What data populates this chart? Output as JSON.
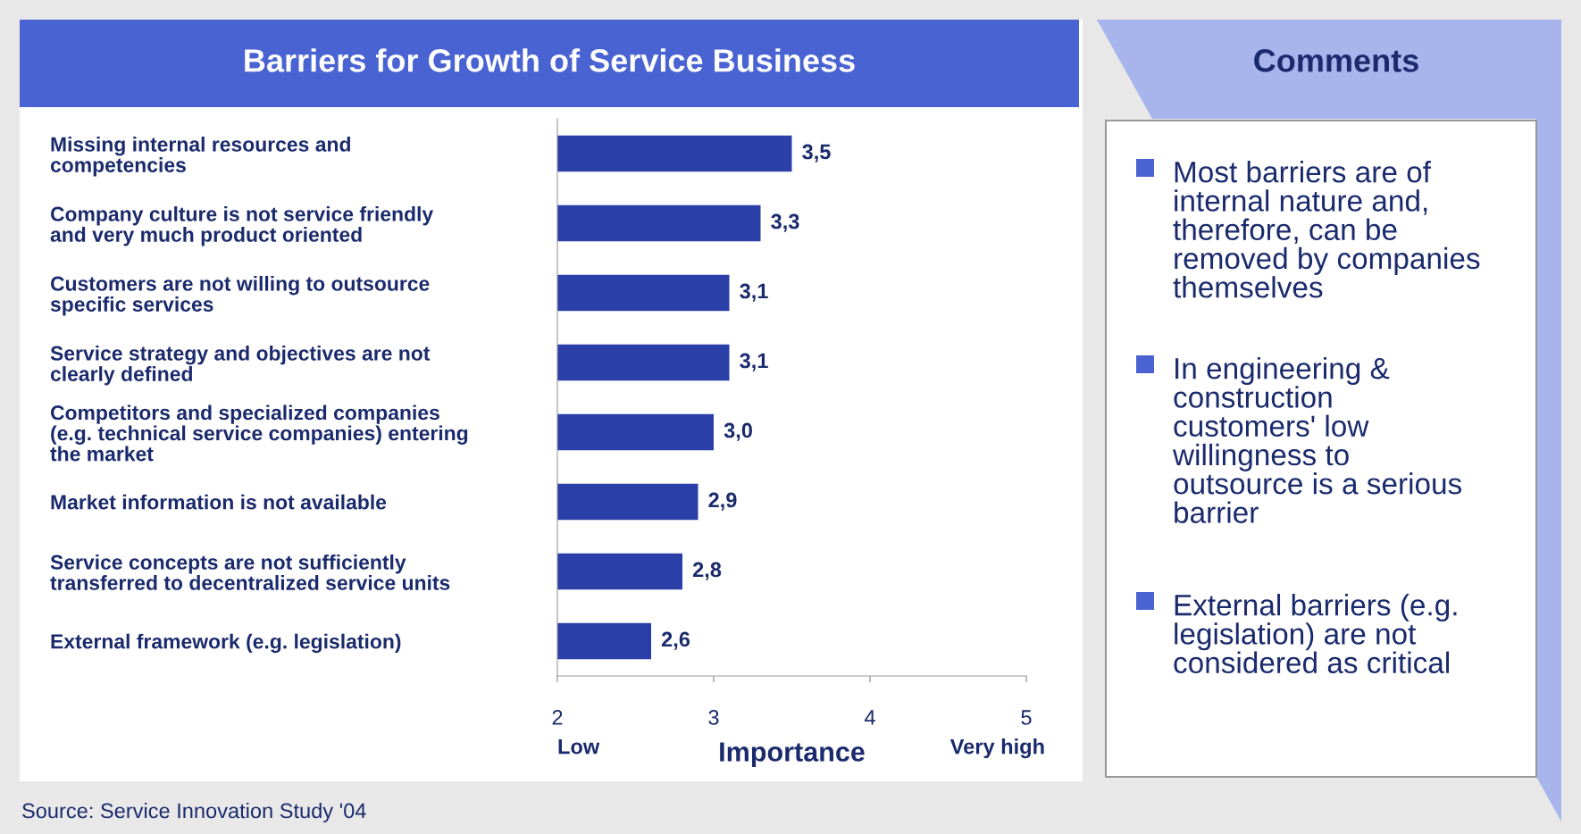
{
  "chart_data": [
    {
      "type": "bar",
      "orientation": "horizontal",
      "title": "Barriers for Growth of Service Business",
      "categories": [
        "Missing internal resources and\ncompetencies",
        "Company culture is not service friendly\nand very much product oriented",
        "Customers are not willing to outsource\nspecific services",
        "Service strategy and objectives are not\nclearly defined",
        "Competitors and specialized companies\n(e.g. technical service companies) entering\nthe market",
        "Market information is not available",
        "Service concepts are not sufficiently\ntransferred to decentralized service units",
        "External framework (e.g. legislation)"
      ],
      "values": [
        3.5,
        3.3,
        3.1,
        3.1,
        3.0,
        2.9,
        2.8,
        2.6
      ],
      "value_labels": [
        "3,5",
        "3,3",
        "3,1",
        "3,1",
        "3,0",
        "2,9",
        "2,8",
        "2,6"
      ],
      "color": "#2a3fa8",
      "xlim": [
        2,
        5
      ],
      "xticks": [
        2,
        3,
        4,
        5
      ],
      "xlabel": "Importance",
      "annotations": [
        "Low",
        "Very high",
        "Source: Service Innovation Study '04"
      ]
    },
    {
      "type": "other",
      "title": "Comments",
      "annotations": [
        "Most barriers are of\ninternal nature and,\ntherefore, can be\nremoved by companies\nthemselves",
        "In engineering &\nconstruction\ncustomers' low\nwillingness to\noutsource is a serious\nbarrier",
        "External barriers (e.g.\nlegislation) are not\nconsidered as critical"
      ]
    }
  ]
}
